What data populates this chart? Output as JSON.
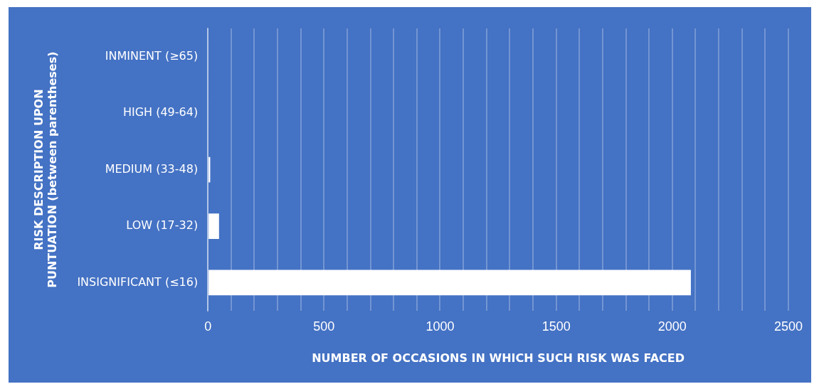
{
  "chart_data": {
    "type": "bar",
    "orientation": "horizontal",
    "categories": [
      "INMINENT (≥65)",
      "HIGH (49-64)",
      "MEDIUM (33-48)",
      "LOW (17-32)",
      "INSIGNIFICANT (≤16)"
    ],
    "values": [
      3,
      3,
      10,
      48,
      2080
    ],
    "color": "#ffffff",
    "xlabel": "NUMBER OF OCCASIONS IN WHICH SUCH RISK WAS FACED",
    "ylabel": "RISK DESCRIPTION UPON PUNTUATION (between parentheses)",
    "xlim": [
      0,
      2500
    ],
    "xticks": [
      0,
      {
        "value": 100,
        "label": null
      },
      {
        "value": 200,
        "label": null
      },
      {
        "value": 300,
        "label": null
      },
      {
        "value": 400,
        "label": null
      },
      500,
      {
        "value": 600,
        "label": null
      },
      {
        "value": 700,
        "label": null
      },
      {
        "value": 800,
        "label": null
      },
      {
        "value": 900,
        "label": null
      },
      1000,
      {
        "value": 1100,
        "label": null
      },
      {
        "value": 1200,
        "label": null
      },
      {
        "value": 1300,
        "label": null
      },
      {
        "value": 1400,
        "label": null
      },
      1500,
      {
        "value": 1600,
        "label": null
      },
      {
        "value": 1700,
        "label": null
      },
      {
        "value": 1800,
        "label": null
      },
      {
        "value": 1900,
        "label": null
      },
      2000,
      {
        "value": 2100,
        "label": null
      },
      {
        "value": 2200,
        "label": null
      },
      {
        "value": 2300,
        "label": null
      },
      {
        "value": 2400,
        "label": null
      },
      2500
    ],
    "grid": "x",
    "legend": false
  }
}
